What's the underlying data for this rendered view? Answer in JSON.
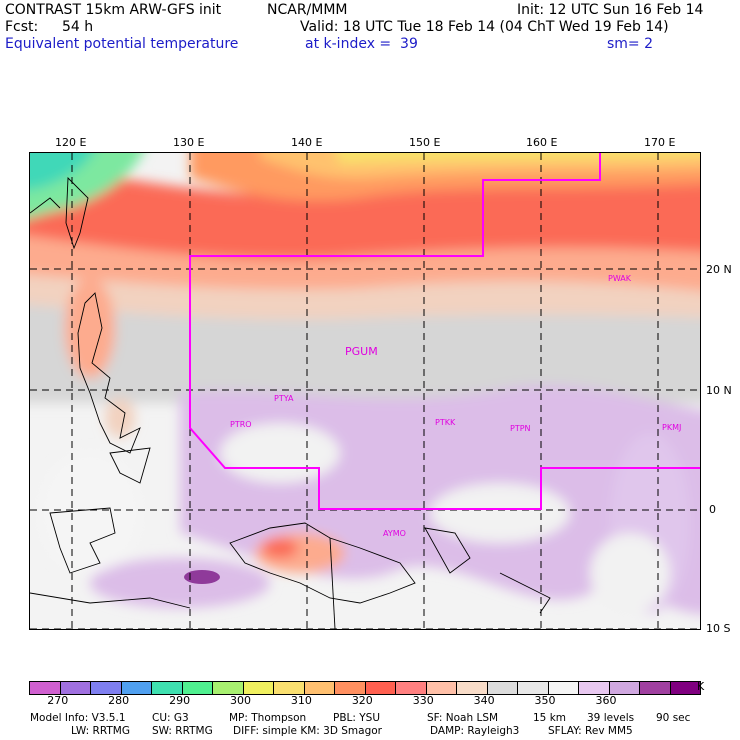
{
  "header": {
    "model": "CONTRAST 15km ARW-GFS init",
    "org": "NCAR/MMM",
    "init": "Init: 12 UTC Sun 16 Feb 14",
    "fcst_label": "Fcst:",
    "fcst_value": "54 h",
    "valid": "Valid: 18 UTC Tue 18 Feb 14 (04 ChT Wed 19 Feb 14)",
    "field": "Equivalent potential temperature",
    "level": "at k-index =  39",
    "sm": "sm= 2"
  },
  "map": {
    "lon_labels": [
      "120 E",
      "130 E",
      "140 E",
      "150 E",
      "160 E",
      "170 E"
    ],
    "lat_labels": [
      "20 N",
      "10 N",
      "0",
      "10 S"
    ],
    "stations": [
      "PWAK",
      "PGUM",
      "PTYA",
      "PTRO",
      "PTKK",
      "PTPN",
      "PKMJ",
      "AYMO"
    ],
    "boundary_color": "#ff00ff"
  },
  "colorbar": {
    "labels": [
      "270",
      "280",
      "290",
      "300",
      "310",
      "320",
      "330",
      "340",
      "350",
      "360"
    ],
    "unit": "K",
    "colors": [
      "#d060d0",
      "#a070e0",
      "#7f7ff0",
      "#50a0f0",
      "#3fe0b0",
      "#50f090",
      "#a8f070",
      "#f0f060",
      "#fae070",
      "#ffc070",
      "#ff9060",
      "#ff6050",
      "#ff8080",
      "#ffc0a8",
      "#f8dcc8",
      "#dcdcdc",
      "#e8e8e8",
      "#f5f5f5",
      "#e8c8f0",
      "#d0a8e0",
      "#a040a0",
      "#800080"
    ]
  },
  "footer": {
    "line1": [
      "Model Info: V3.5.1",
      "CU: G3",
      "MP: Thompson",
      "PBL: YSU",
      "SF: Noah LSM",
      "15 km",
      "39 levels",
      "90 sec"
    ],
    "line2": [
      "LW: RRTMG",
      "SW: RRTMG",
      "DIFF: simple KM: 3D Smagor",
      "DAMP: Rayleigh3",
      "SFLAY: Rev MM5"
    ]
  }
}
